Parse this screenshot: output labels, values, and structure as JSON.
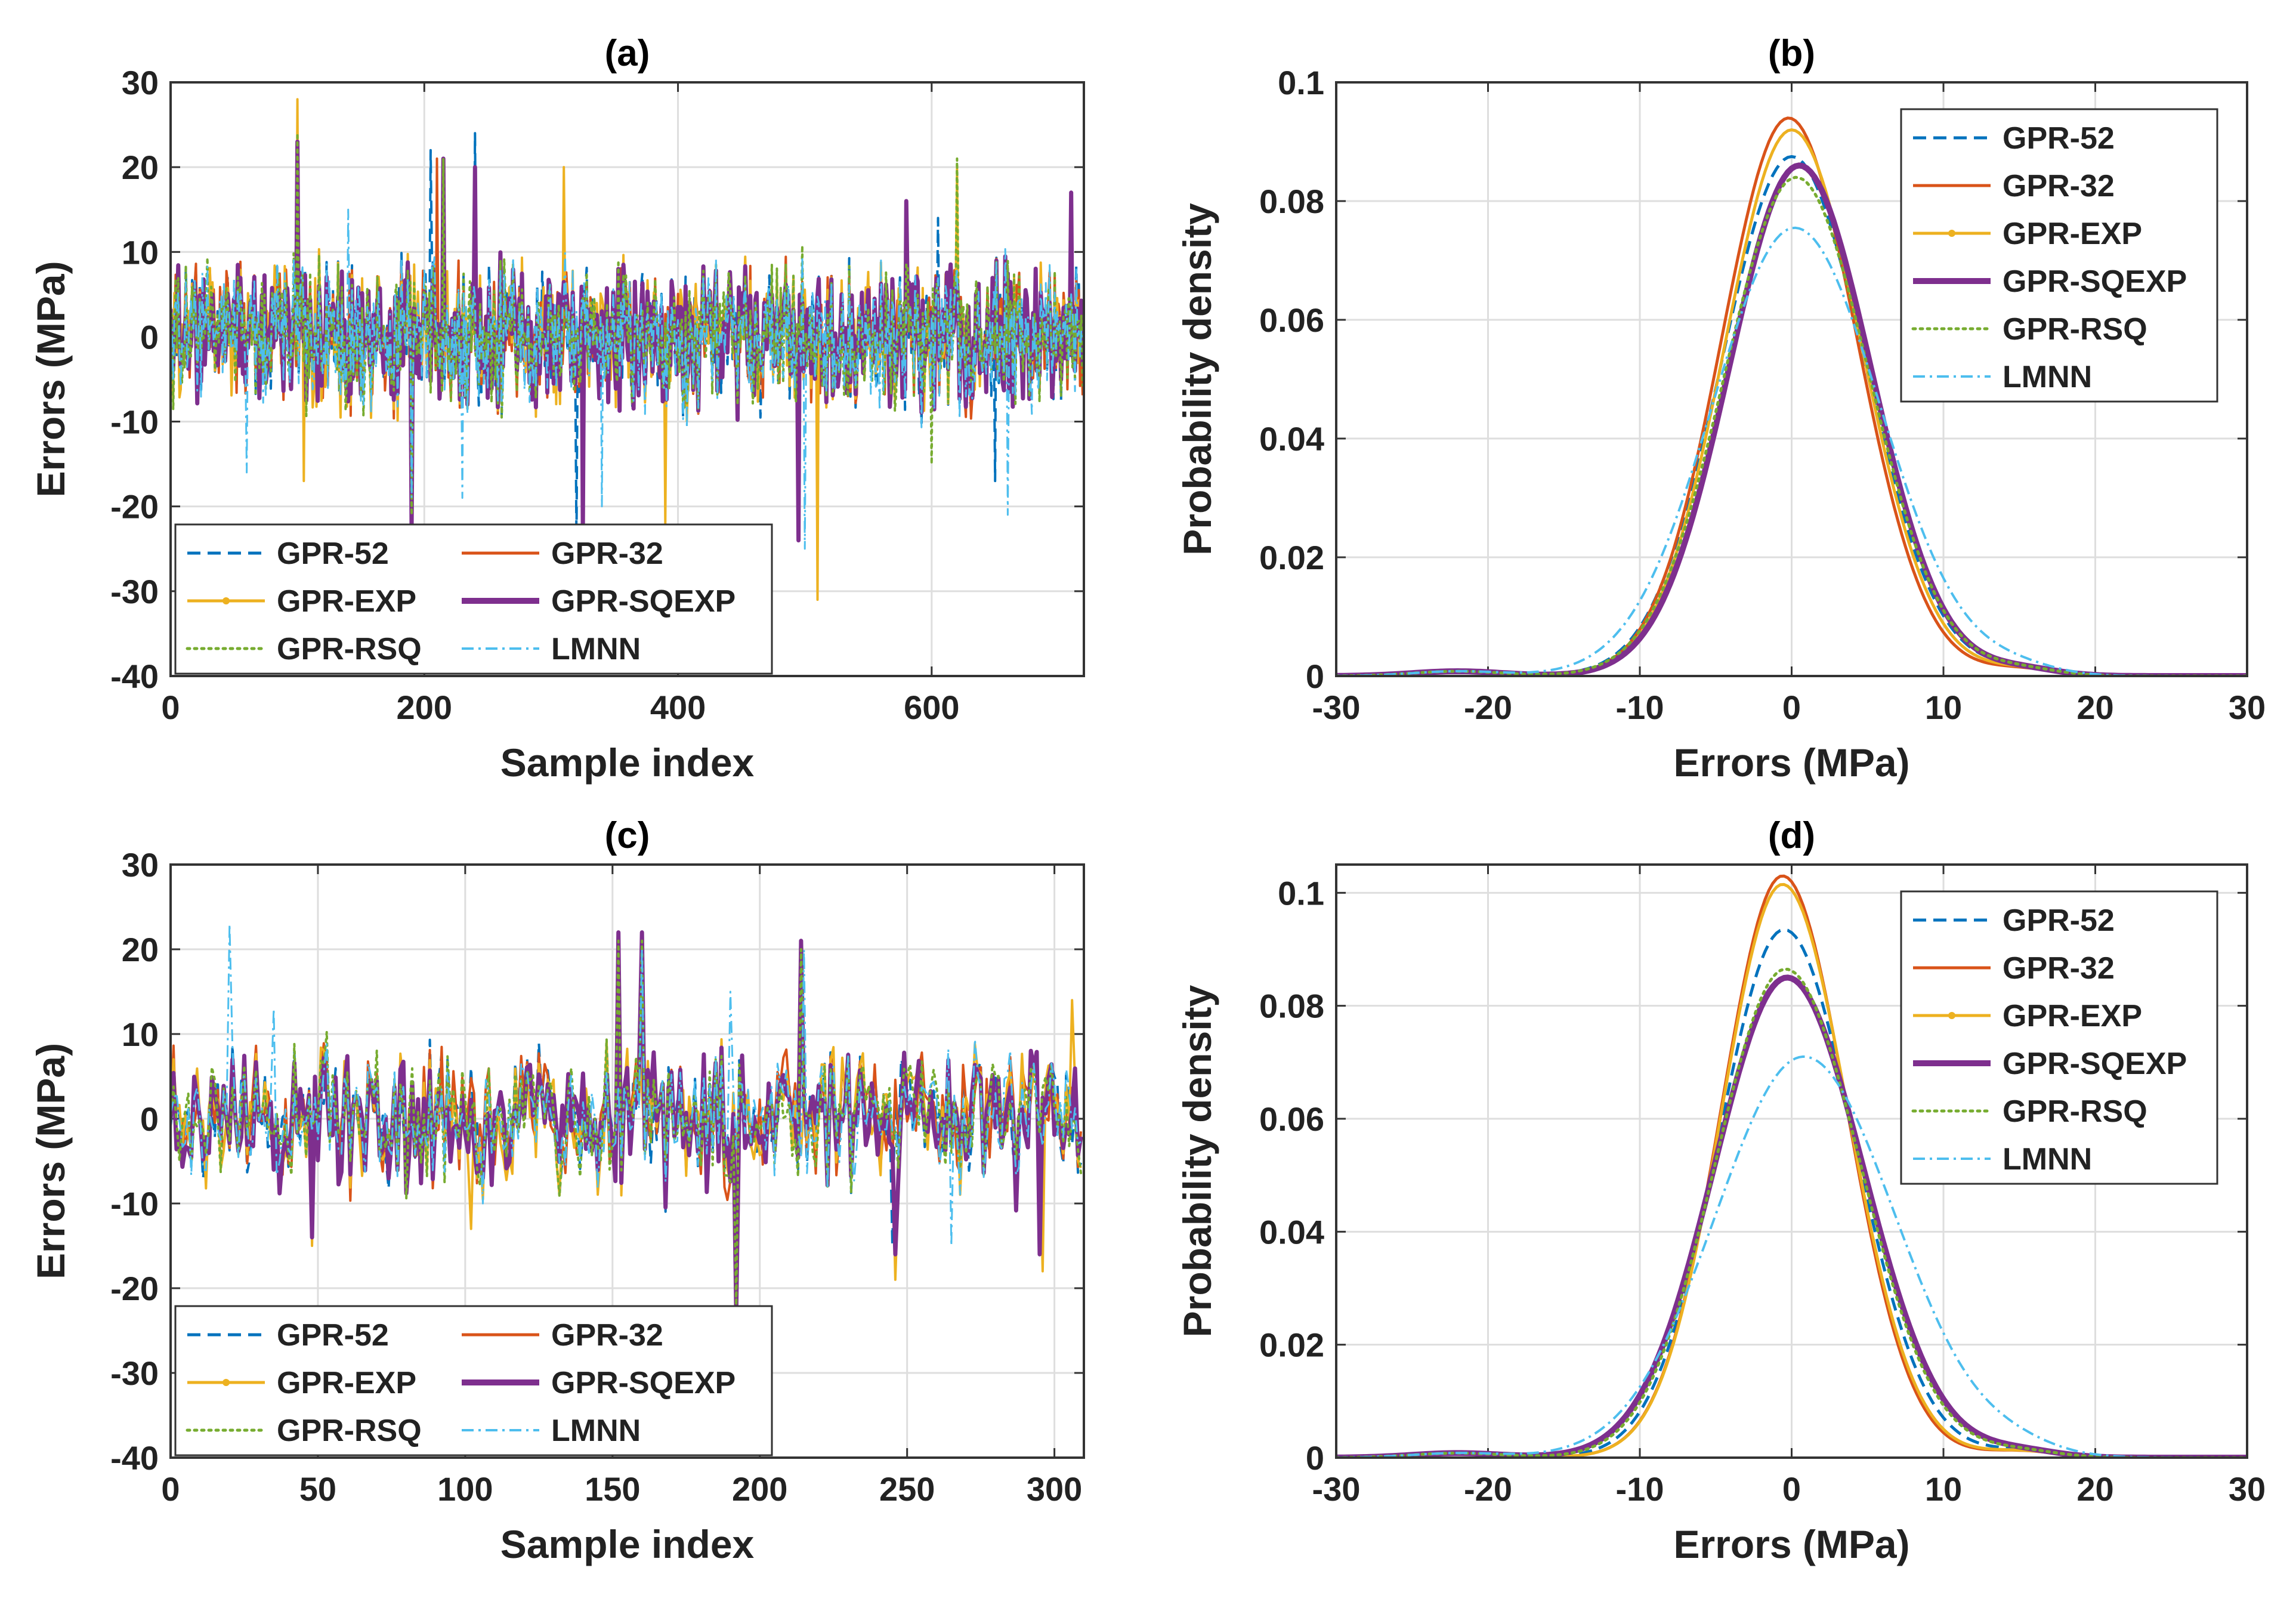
{
  "series_styles": [
    {
      "name": "GPR-52",
      "color": "#0072BD",
      "dash": "dashed"
    },
    {
      "name": "GPR-32",
      "color": "#D95319",
      "dash": "solid"
    },
    {
      "name": "GPR-EXP",
      "color": "#EDB120",
      "dash": "solid-dot-marker"
    },
    {
      "name": "GPR-SQEXP",
      "color": "#7E2F8E",
      "dash": "solid-thick"
    },
    {
      "name": "GPR-RSQ",
      "color": "#77AC30",
      "dash": "dotted"
    },
    {
      "name": "LMNN",
      "color": "#4DBEEE",
      "dash": "dash-dot"
    }
  ],
  "chart_data": [
    {
      "id": "a",
      "type": "line",
      "title": "(a)",
      "xlabel": "Sample index",
      "ylabel": "Errors (MPa)",
      "xlim": [
        0,
        720
      ],
      "ylim": [
        -40,
        30
      ],
      "xticks": [
        0,
        200,
        400,
        600
      ],
      "yticks": [
        -40,
        -30,
        -20,
        -10,
        0,
        10,
        20,
        30
      ],
      "grid": true,
      "legend": {
        "position": "bottom-left",
        "columns": 2
      },
      "n_samples": 720,
      "series": [
        {
          "name": "GPR-52",
          "peaks": [
            [
              100,
              23
            ],
            [
              190,
              -20
            ],
            [
              205,
              22
            ],
            [
              240,
              24
            ],
            [
              320,
              -24
            ],
            [
              495,
              -24
            ],
            [
              605,
              14
            ],
            [
              650,
              -17
            ]
          ]
        },
        {
          "name": "GPR-32",
          "peaks": [
            [
              100,
              22
            ],
            [
              210,
              21
            ],
            [
              325,
              -23
            ],
            [
              495,
              -22
            ],
            [
              710,
              16
            ]
          ]
        },
        {
          "name": "GPR-EXP",
          "peaks": [
            [
              100,
              28
            ],
            [
              105,
              -17
            ],
            [
              310,
              20
            ],
            [
              390,
              -22
            ],
            [
              510,
              -31
            ],
            [
              620,
              20
            ],
            [
              710,
              17
            ]
          ]
        },
        {
          "name": "GPR-SQEXP",
          "peaks": [
            [
              100,
              23
            ],
            [
              190,
              -23
            ],
            [
              215,
              21
            ],
            [
              240,
              20
            ],
            [
              325,
              -23
            ],
            [
              495,
              -24
            ],
            [
              580,
              16
            ],
            [
              710,
              17
            ]
          ]
        },
        {
          "name": "GPR-RSQ",
          "peaks": [
            [
              100,
              24
            ],
            [
              190,
              -21
            ],
            [
              215,
              21
            ],
            [
              600,
              -15
            ],
            [
              620,
              21
            ]
          ]
        },
        {
          "name": "LMNN",
          "peaks": [
            [
              60,
              -16
            ],
            [
              140,
              15
            ],
            [
              190,
              -19
            ],
            [
              230,
              -19
            ],
            [
              340,
              -20
            ],
            [
              500,
              -25
            ],
            [
              660,
              -21
            ]
          ]
        }
      ]
    },
    {
      "id": "b",
      "type": "line",
      "title": "(b)",
      "xlabel": "Errors (MPa)",
      "ylabel": "Probability density",
      "xlim": [
        -30,
        30
      ],
      "ylim": [
        0,
        0.1
      ],
      "xticks": [
        -30,
        -20,
        -10,
        0,
        10,
        20,
        30
      ],
      "yticks": [
        0,
        0.02,
        0.04,
        0.06,
        0.08,
        0.1
      ],
      "ytick_labels": [
        "0",
        "0.02",
        "0.04",
        "0.06",
        "0.08",
        "0.1"
      ],
      "grid": true,
      "legend": {
        "position": "top-right",
        "columns": 1
      },
      "series": [
        {
          "name": "GPR-52",
          "peak_x": 0.0,
          "peak": 0.0875,
          "sigma_left": 4.6,
          "sigma_right": 4.8
        },
        {
          "name": "GPR-32",
          "peak_x": -0.2,
          "peak": 0.094,
          "sigma_left": 4.4,
          "sigma_right": 4.5
        },
        {
          "name": "GPR-EXP",
          "peak_x": 0.0,
          "peak": 0.092,
          "sigma_left": 4.4,
          "sigma_right": 4.6
        },
        {
          "name": "GPR-SQEXP",
          "peak_x": 0.5,
          "peak": 0.086,
          "sigma_left": 4.6,
          "sigma_right": 4.7
        },
        {
          "name": "GPR-RSQ",
          "peak_x": 0.3,
          "peak": 0.084,
          "sigma_left": 4.7,
          "sigma_right": 4.8
        },
        {
          "name": "LMNN",
          "peak_x": 0.2,
          "peak": 0.0755,
          "sigma_left": 5.4,
          "sigma_right": 5.6
        }
      ]
    },
    {
      "id": "c",
      "type": "line",
      "title": "(c)",
      "xlabel": "Sample index",
      "ylabel": "Errors (MPa)",
      "xlim": [
        0,
        310
      ],
      "ylim": [
        -40,
        30
      ],
      "xticks": [
        0,
        50,
        100,
        150,
        200,
        250,
        300
      ],
      "yticks": [
        -40,
        -30,
        -20,
        -10,
        0,
        10,
        20,
        30
      ],
      "grid": true,
      "legend": {
        "position": "bottom-left",
        "columns": 2
      },
      "n_samples": 310,
      "series": [
        {
          "name": "GPR-52",
          "peaks": [
            [
              48,
              -13
            ],
            [
              152,
              21
            ],
            [
              160,
              22
            ],
            [
              192,
              -22
            ],
            [
              214,
              20
            ],
            [
              245,
              -15
            ]
          ]
        },
        {
          "name": "GPR-32",
          "peaks": [
            [
              48,
              -14
            ],
            [
              152,
              22
            ],
            [
              160,
              22
            ],
            [
              192,
              -23
            ],
            [
              214,
              21
            ]
          ]
        },
        {
          "name": "GPR-EXP",
          "peaks": [
            [
              48,
              -15
            ],
            [
              102,
              -13
            ],
            [
              152,
              22
            ],
            [
              246,
              -19
            ],
            [
              296,
              -18
            ],
            [
              306,
              14
            ]
          ]
        },
        {
          "name": "GPR-SQEXP",
          "peaks": [
            [
              48,
              -14
            ],
            [
              152,
              22
            ],
            [
              160,
              22
            ],
            [
              192,
              -23
            ],
            [
              214,
              21
            ],
            [
              246,
              -16
            ],
            [
              295,
              -16
            ]
          ]
        },
        {
          "name": "GPR-RSQ",
          "peaks": [
            [
              152,
              21
            ],
            [
              160,
              21
            ],
            [
              192,
              -22
            ],
            [
              214,
              20
            ]
          ]
        },
        {
          "name": "LMNN",
          "peaks": [
            [
              20,
              23
            ],
            [
              35,
              13
            ],
            [
              160,
              20
            ],
            [
              190,
              15
            ],
            [
              215,
              20
            ],
            [
              265,
              -15
            ]
          ]
        }
      ]
    },
    {
      "id": "d",
      "type": "line",
      "title": "(d)",
      "xlabel": "Errors (MPa)",
      "ylabel": "Probability density",
      "xlim": [
        -30,
        30
      ],
      "ylim": [
        0,
        0.105
      ],
      "xticks": [
        -30,
        -20,
        -10,
        0,
        10,
        20,
        30
      ],
      "yticks": [
        0,
        0.02,
        0.04,
        0.06,
        0.08,
        0.1
      ],
      "ytick_labels": [
        "0",
        "0.02",
        "0.04",
        "0.06",
        "0.08",
        "0.1"
      ],
      "grid": true,
      "legend": {
        "position": "top-right",
        "columns": 1
      },
      "series": [
        {
          "name": "GPR-52",
          "peak_x": -0.5,
          "peak": 0.0935,
          "sigma_left": 4.3,
          "sigma_right": 4.6
        },
        {
          "name": "GPR-32",
          "peak_x": -0.6,
          "peak": 0.103,
          "sigma_left": 4.0,
          "sigma_right": 4.2
        },
        {
          "name": "GPR-EXP",
          "peak_x": -0.6,
          "peak": 0.1015,
          "sigma_left": 4.0,
          "sigma_right": 4.3
        },
        {
          "name": "GPR-SQEXP",
          "peak_x": -0.3,
          "peak": 0.085,
          "sigma_left": 4.8,
          "sigma_right": 5.0
        },
        {
          "name": "GPR-RSQ",
          "peak_x": -0.4,
          "peak": 0.0865,
          "sigma_left": 4.6,
          "sigma_right": 4.9
        },
        {
          "name": "LMNN",
          "peak_x": 0.8,
          "peak": 0.071,
          "sigma_left": 5.8,
          "sigma_right": 6.0
        }
      ]
    }
  ]
}
